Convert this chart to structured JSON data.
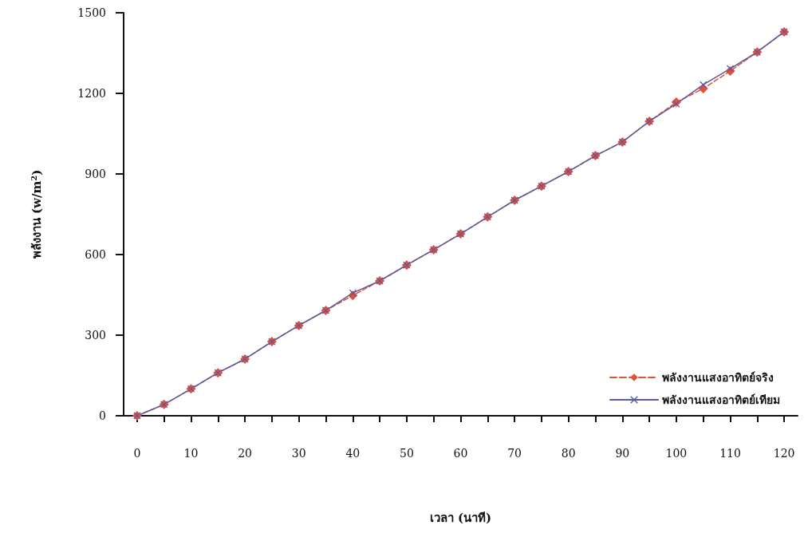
{
  "chart_data": {
    "type": "line",
    "xlabel": "เวลา (นาที)",
    "ylabel": "พลังงาน (w/m$^{2}$)",
    "x": [
      0,
      5,
      10,
      15,
      20,
      25,
      30,
      35,
      40,
      45,
      50,
      55,
      60,
      65,
      70,
      75,
      80,
      85,
      90,
      95,
      100,
      105,
      110,
      115,
      120
    ],
    "series": [
      {
        "name": "พลังงานแสงอาทิตย์จริง",
        "color": "#e0503a",
        "marker": "diamond",
        "line_style": "dashed",
        "values": [
          0,
          42,
          100,
          160,
          211,
          276,
          336,
          392,
          448,
          502,
          561,
          618,
          677,
          740,
          802,
          855,
          909,
          968,
          1019,
          1096,
          1167,
          1218,
          1283,
          1354,
          1429
        ]
      },
      {
        "name": "พลังงานแสงอาทิตย์เทียม",
        "color": "#5a5aa0",
        "marker": "cross",
        "line_style": "solid",
        "values": [
          0,
          42,
          100,
          160,
          211,
          276,
          336,
          392,
          457,
          502,
          561,
          618,
          677,
          740,
          802,
          855,
          909,
          968,
          1019,
          1096,
          1161,
          1232,
          1292,
          1354,
          1429
        ]
      }
    ],
    "xlim": [
      -2.5,
      122.5
    ],
    "xticks": [
      0,
      {
        "value": 5,
        "label": null
      },
      10,
      {
        "value": 15,
        "label": null
      },
      20,
      {
        "value": 25,
        "label": null
      },
      30,
      {
        "value": 35,
        "label": null
      },
      40,
      {
        "value": 45,
        "label": null
      },
      50,
      {
        "value": 55,
        "label": null
      },
      60,
      {
        "value": 65,
        "label": null
      },
      70,
      {
        "value": 75,
        "label": null
      },
      80,
      {
        "value": 85,
        "label": null
      },
      90,
      {
        "value": 95,
        "label": null
      },
      100,
      {
        "value": 105,
        "label": null
      },
      110,
      {
        "value": 115,
        "label": null
      },
      120
    ],
    "ylim": [
      0,
      1500
    ],
    "yticks": [
      0,
      300,
      600,
      900,
      1200,
      1500
    ],
    "grid": false,
    "legend": "bottom right"
  }
}
